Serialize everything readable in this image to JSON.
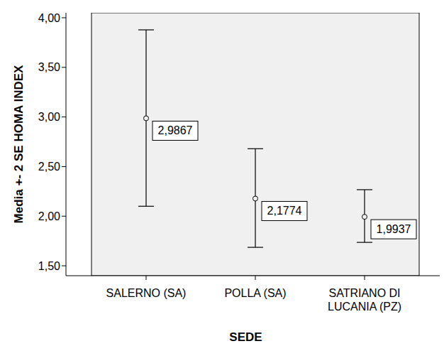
{
  "chart_data": {
    "type": "errorbar",
    "x_label": "SEDE",
    "y_label": "Media +- 2 SE HOMA INDEX",
    "categories": [
      "SALERNO (SA)",
      "POLLA (SA)",
      "SATRIANO DI LUCANIA (PZ)"
    ],
    "values": [
      2.9867,
      2.1774,
      1.9937
    ],
    "value_labels": [
      "2,9867",
      "2,1774",
      "1,9937"
    ],
    "lower": [
      2.1,
      1.686,
      1.736
    ],
    "upper": [
      3.878,
      2.68,
      2.267
    ],
    "ylim": [
      1.4,
      4.05
    ],
    "yticks": [
      {
        "value": 1.5,
        "label": "1,50"
      },
      {
        "value": 2.0,
        "label": "2,00"
      },
      {
        "value": 2.5,
        "label": "2,50"
      },
      {
        "value": 3.0,
        "label": "3,00"
      },
      {
        "value": 3.5,
        "label": "3,50"
      },
      {
        "value": 4.0,
        "label": "4,00"
      }
    ],
    "grid": false,
    "data_labels": true,
    "marker": "circle",
    "color": "#000000"
  }
}
